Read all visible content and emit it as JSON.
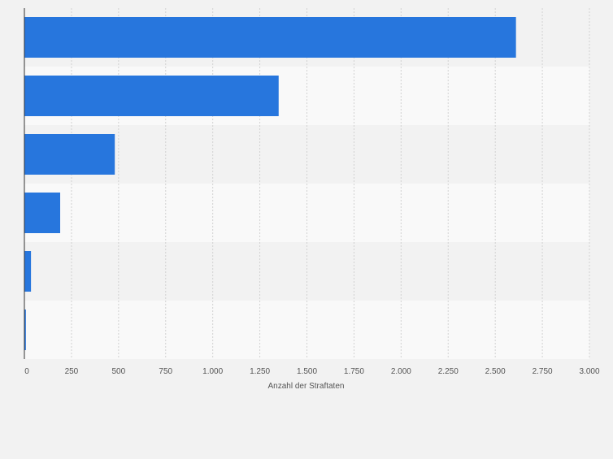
{
  "chart_data": {
    "type": "bar",
    "orientation": "horizontal",
    "categories": [
      "",
      "",
      "",
      "",
      "",
      ""
    ],
    "values": [
      2610,
      1350,
      480,
      190,
      35,
      8
    ],
    "title": "",
    "xlabel": "Anzahl der Straftaten",
    "ylabel": "",
    "xlim": [
      0,
      3000
    ],
    "ticks": [
      {
        "value": 0,
        "label": "0"
      },
      {
        "value": 250,
        "label": "250"
      },
      {
        "value": 500,
        "label": "500"
      },
      {
        "value": 750,
        "label": "750"
      },
      {
        "value": 1000,
        "label": "1.000"
      },
      {
        "value": 1250,
        "label": "1.250"
      },
      {
        "value": 1500,
        "label": "1.500"
      },
      {
        "value": 1750,
        "label": "1.750"
      },
      {
        "value": 2000,
        "label": "2.000"
      },
      {
        "value": 2250,
        "label": "2.250"
      },
      {
        "value": 2500,
        "label": "2.500"
      },
      {
        "value": 2750,
        "label": "2.750"
      },
      {
        "value": 3000,
        "label": "3.000"
      }
    ],
    "grid": true,
    "legend": "none",
    "colors": {
      "bar": "#2776dd",
      "background": "#f2f2f2",
      "band_dark": "#f2f2f2",
      "band_light": "#f9f9f9",
      "grid": "#d2d2d2",
      "axis": "#333333",
      "text": "#555555"
    }
  }
}
